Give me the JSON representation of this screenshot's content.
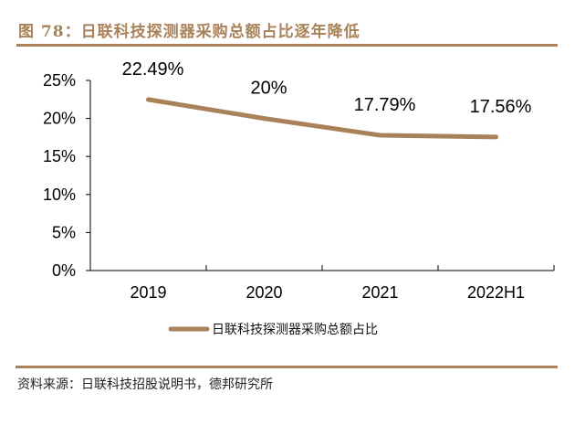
{
  "header": {
    "title": "图 78：日联科技探测器采购总额占比逐年降低"
  },
  "footer": {
    "source": "资料来源：日联科技招股说明书，德邦研究所"
  },
  "colors": {
    "accent": "#A9825A",
    "axis": "#000000",
    "text": "#000000"
  },
  "chart_data": {
    "type": "line",
    "title": "日联科技探测器采购总额占比逐年降低",
    "categories": [
      "2019",
      "2020",
      "2021",
      "2022H1"
    ],
    "series": [
      {
        "name": "日联科技探测器采购总额占比",
        "values": [
          22.49,
          20.0,
          17.79,
          17.56
        ],
        "labels": [
          "22.49%",
          "20%",
          "17.79%",
          "17.56%"
        ],
        "color": "#A9825A"
      }
    ],
    "xlabel": "",
    "ylabel": "",
    "ylim": [
      0,
      25
    ],
    "yticks": [
      0,
      5,
      10,
      15,
      20,
      25
    ],
    "ytick_labels": [
      "0%",
      "5%",
      "10%",
      "15%",
      "20%",
      "25%"
    ],
    "grid": false,
    "legend": "bottom-center"
  }
}
